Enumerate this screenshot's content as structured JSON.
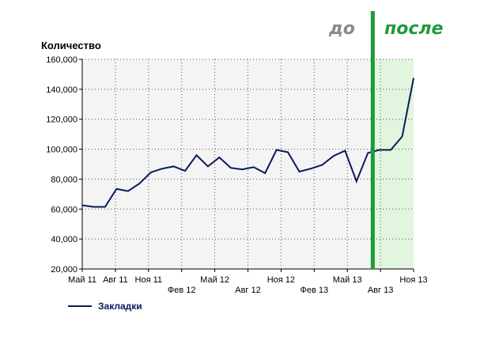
{
  "chart_data": {
    "type": "line",
    "title": "",
    "xlabel": "",
    "ylabel": "Количество",
    "ylim": [
      20000,
      160000
    ],
    "y_ticks": [
      20000,
      40000,
      60000,
      80000,
      100000,
      120000,
      140000,
      160000
    ],
    "y_tick_labels": [
      "20,000",
      "40,000",
      "60,000",
      "80,000",
      "100,000",
      "120,000",
      "140,000",
      "160,000"
    ],
    "x_range": [
      "May 2011",
      "Nov 2013"
    ],
    "x_ticks_top": [
      "Май 11",
      "Авг 11",
      "Ноя 11",
      "Май 12",
      "Ноя 12",
      "Май 13",
      "Ноя 13"
    ],
    "x_ticks_bottom": [
      "Фев 12",
      "Авг 12",
      "Фев 13",
      "Авг 13"
    ],
    "grid": true,
    "legend_position": "bottom-left",
    "highlight_region": {
      "from": "Aug 2013",
      "to": "Nov 2013",
      "color": "#e2f5de"
    },
    "divider": {
      "at": "Jul 2013",
      "color": "#1e9a3c"
    },
    "annotations": [
      {
        "text": "до",
        "color": "#8a8a8a"
      },
      {
        "text": "после",
        "color": "#1e9a3c"
      }
    ],
    "series": [
      {
        "name": "Закладки",
        "color": "#0a1a5c",
        "values": [
          62500,
          61500,
          61500,
          73500,
          72000,
          77000,
          84500,
          87000,
          88500,
          85500,
          96000,
          88500,
          94500,
          87500,
          86500,
          88000,
          84000,
          99500,
          98000,
          85000,
          87000,
          89500,
          95500,
          99000,
          78500,
          97500,
          99500,
          99500,
          108500,
          147500
        ]
      }
    ]
  }
}
